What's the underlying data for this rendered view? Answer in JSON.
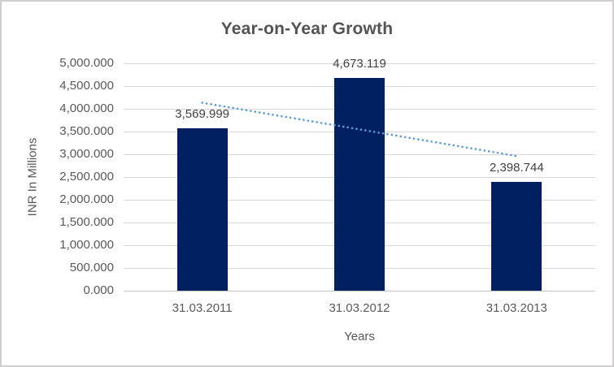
{
  "chart_data": {
    "type": "bar",
    "title": "Year-on-Year Growth",
    "xlabel": "Years",
    "ylabel": "INR In Millions",
    "categories": [
      "31.03.2011",
      "31.03.2012",
      "31.03.2013"
    ],
    "values": [
      3569.999,
      4673.119,
      2398.744
    ],
    "data_labels": [
      "3,569.999",
      "4,673.119",
      "2,398.744"
    ],
    "ylim": [
      0,
      5000
    ],
    "ytick_step": 500,
    "ytick_labels": [
      "0.000",
      "500.000",
      "1,000.000",
      "1,500.000",
      "2,000.000",
      "2,500.000",
      "3,000.000",
      "3,500.000",
      "4,000.000",
      "4,500.000",
      "5,000.000"
    ],
    "grid": true,
    "legend": "none",
    "trendline": {
      "style": "dotted",
      "start_value": 4132.8,
      "end_value": 2961.8
    },
    "colors": {
      "bar": "#002060",
      "trendline": "#5B9BD5",
      "gridline": "#D9D9D9",
      "axis_line": "#C6C6C6",
      "title_text": "#535353",
      "tick_text": "#595959",
      "data_label_text": "#404040",
      "frame_border": "#D0CECE"
    }
  }
}
